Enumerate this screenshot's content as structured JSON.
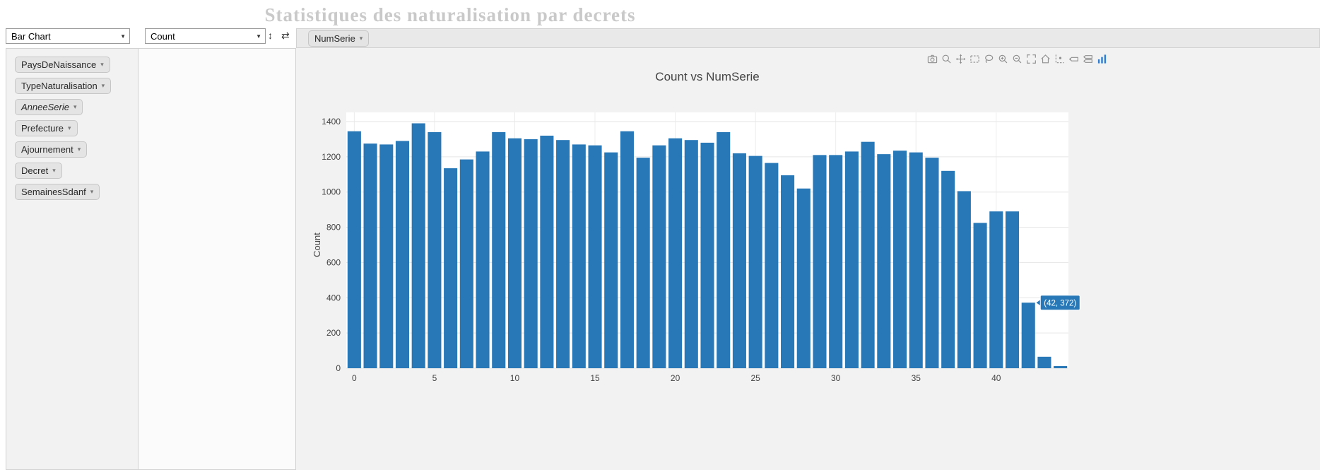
{
  "page": {
    "title": "Statistiques des naturalisation par decrets"
  },
  "toolbar": {
    "renderer_value": "Bar Chart",
    "aggregator_value": "Count"
  },
  "icons": {
    "select_caret": "▼",
    "pill_caret": "▾",
    "row_order": "↕",
    "col_order": "⇄"
  },
  "pivot": {
    "columns": [
      {
        "label": "NumSerie",
        "italic": false
      }
    ],
    "rows": [],
    "unused_attributes": [
      {
        "label": "PaysDeNaissance",
        "italic": false
      },
      {
        "label": "TypeNaturalisation",
        "italic": false
      },
      {
        "label": "AnneeSerie",
        "italic": true
      },
      {
        "label": "Prefecture",
        "italic": false
      },
      {
        "label": "Ajournement",
        "italic": false
      },
      {
        "label": "Decret",
        "italic": false
      },
      {
        "label": "SemainesSdanf",
        "italic": false
      }
    ]
  },
  "chart_toolbar": {
    "icons": [
      "camera",
      "zoom",
      "pan",
      "box-select",
      "lasso",
      "zoom-in",
      "zoom-out",
      "autoscale",
      "reset-axes",
      "toggle-spikelines",
      "hover-closest",
      "hover-compare",
      "plotly-logo"
    ]
  },
  "chart_data": {
    "type": "bar",
    "title": "Count vs NumSerie",
    "xlabel": "",
    "ylabel": "Count",
    "x": [
      0,
      1,
      2,
      3,
      4,
      5,
      6,
      7,
      8,
      9,
      10,
      11,
      12,
      13,
      14,
      15,
      16,
      17,
      18,
      19,
      20,
      21,
      22,
      23,
      24,
      25,
      26,
      27,
      28,
      29,
      30,
      31,
      32,
      33,
      34,
      35,
      36,
      37,
      38,
      39,
      40,
      41,
      42,
      43,
      44
    ],
    "values": [
      1345,
      1275,
      1270,
      1290,
      1390,
      1340,
      1135,
      1185,
      1230,
      1340,
      1305,
      1300,
      1320,
      1295,
      1270,
      1265,
      1225,
      1345,
      1195,
      1265,
      1305,
      1295,
      1280,
      1340,
      1220,
      1205,
      1165,
      1095,
      1020,
      1210,
      1210,
      1230,
      1285,
      1215,
      1235,
      1225,
      1195,
      1120,
      1005,
      825,
      890,
      890,
      372,
      65,
      12
    ],
    "xticks": [
      0,
      5,
      10,
      15,
      20,
      25,
      30,
      35,
      40
    ],
    "yticks": [
      0,
      200,
      400,
      600,
      800,
      1000,
      1200,
      1400
    ],
    "ylim": [
      0,
      1400
    ],
    "grid": true,
    "legend": false,
    "bar_color": "#2878b8",
    "annotation": {
      "x": 42,
      "y": 372,
      "label": "(42, 372)"
    }
  }
}
